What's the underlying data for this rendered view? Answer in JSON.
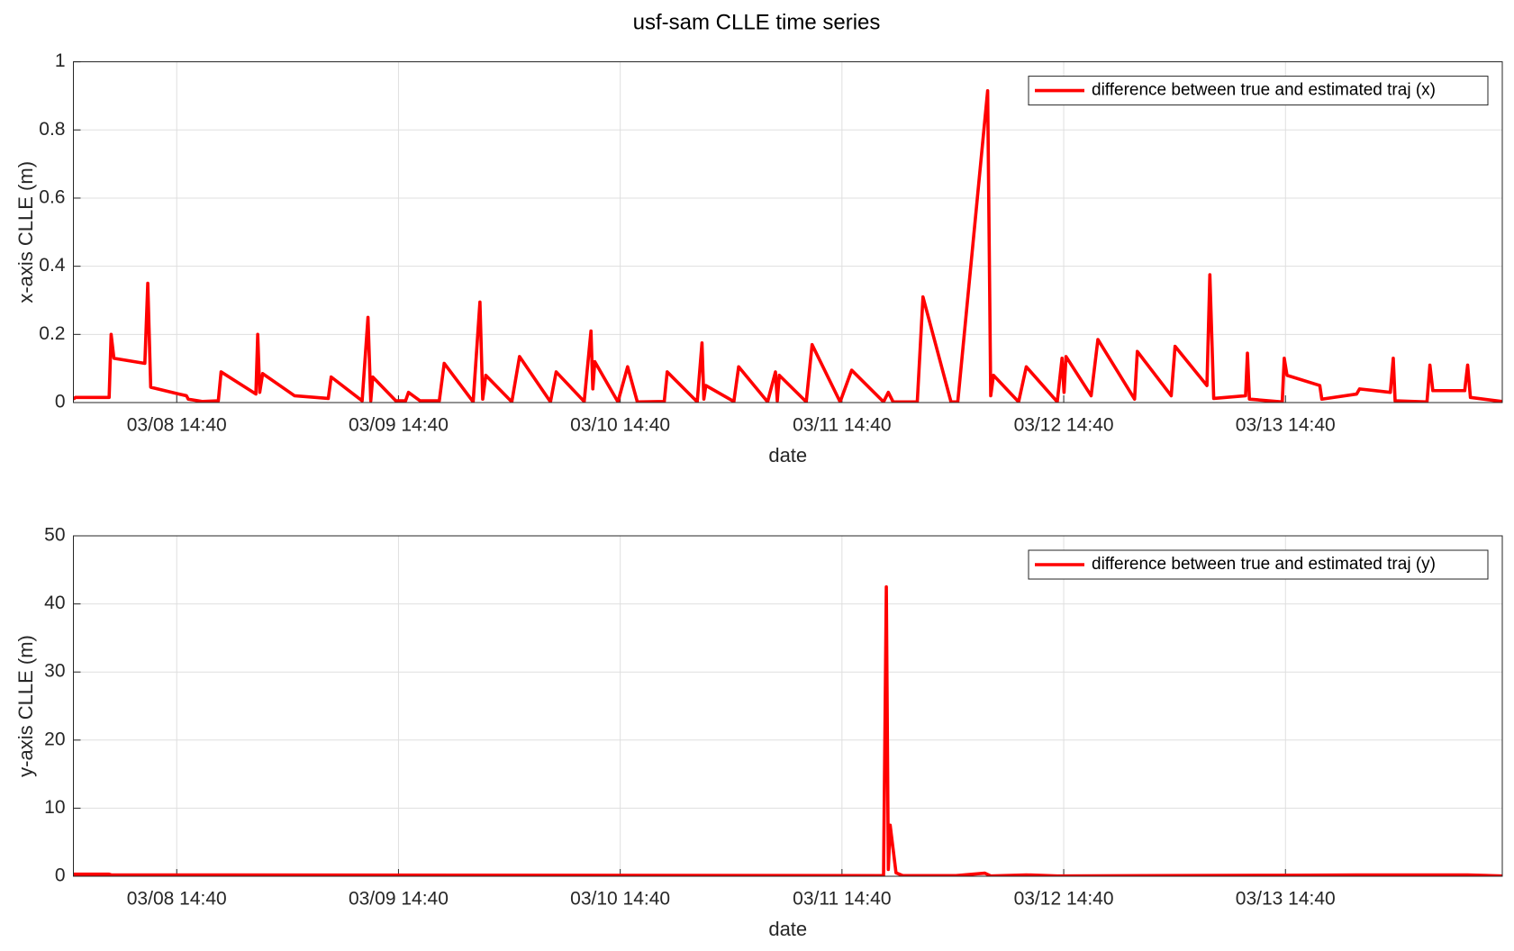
{
  "title": "usf-sam CLLE time series",
  "chart_data": [
    {
      "type": "line",
      "xlabel": "date",
      "ylabel": "x-axis CLLE (m)",
      "grid": true,
      "legend": "upper right",
      "xlim": [
        "03/08 03:29",
        "03/14 14:08"
      ],
      "xticks": [
        "03/08 14:40",
        "03/09 14:40",
        "03/10 14:40",
        "03/11 14:40",
        "03/12 14:40",
        "03/13 14:40"
      ],
      "ylim": [
        0,
        1
      ],
      "yticks": [
        0,
        0.2,
        0.4,
        0.6,
        0.8,
        1
      ],
      "x": [
        "03/08 03:29",
        "03/08 03:42",
        "03/08 07:21",
        "03/08 07:34",
        "03/08 07:52",
        "03/08 11:13",
        "03/08 11:32",
        "03/08 11:51",
        "03/08 14:53",
        "03/08 15:43",
        "03/08 15:55",
        "03/08 17:29",
        "03/08 19:10",
        "03/08 19:28",
        "03/08 23:14",
        "03/08 23:26",
        "03/08 23:39",
        "03/08 23:58",
        "03/09 03:25",
        "03/09 07:04",
        "03/09 07:23",
        "03/09 10:44",
        "03/09 11:22",
        "03/09 11:40",
        "03/09 11:53",
        "03/09 14:23",
        "03/09 15:26",
        "03/09 15:45",
        "03/09 17:00",
        "03/09 19:05",
        "03/09 19:37",
        "03/09 22:45",
        "03/09 23:29",
        "03/09 23:47",
        "03/10 00:07",
        "03/10 02:56",
        "03/10 03:46",
        "03/10 07:07",
        "03/10 07:44",
        "03/10 10:46",
        "03/10 11:30",
        "03/10 11:42",
        "03/10 11:55",
        "03/10 14:25",
        "03/10 15:28",
        "03/10 16:31",
        "03/10 19:26",
        "03/10 19:45",
        "03/10 23:00",
        "03/10 23:31",
        "03/10 23:43",
        "03/10 23:56",
        "03/11 02:58",
        "03/11 03:29",
        "03/11 06:37",
        "03/11 07:28",
        "03/11 07:40",
        "03/11 07:53",
        "03/11 10:48",
        "03/11 11:26",
        "03/11 14:28",
        "03/11 15:43",
        "03/11 19:10",
        "03/11 19:41",
        "03/11 20:12",
        "03/11 22:49",
        "03/11 23:26",
        "03/12 02:28",
        "03/12 03:12",
        "03/12 06:26",
        "03/12 06:46",
        "03/12 07:04",
        "03/12 09:47",
        "03/12 10:37",
        "03/12 13:58",
        "03/12 14:29",
        "03/12 14:42",
        "03/12 14:55",
        "03/12 17:38",
        "03/12 18:22",
        "03/12 22:20",
        "03/12 22:38",
        "03/13 02:18",
        "03/13 02:43",
        "03/13 06:10",
        "03/13 06:29",
        "03/13 06:54",
        "03/13 10:21",
        "03/13 10:33",
        "03/13 10:46",
        "03/13 14:19",
        "03/13 14:32",
        "03/13 14:50",
        "03/13 18:23",
        "03/13 18:36",
        "03/13 22:22",
        "03/13 22:41",
        "03/14 02:01",
        "03/14 02:20",
        "03/14 02:32",
        "03/14 05:59",
        "03/14 06:18",
        "03/14 06:37",
        "03/14 10:04",
        "03/14 10:23",
        "03/14 10:41",
        "03/14 14:08"
      ],
      "series": [
        {
          "name": "difference between true and estimated traj (x)",
          "color": "#ff0000",
          "values": [
            0.01,
            0.015,
            0.015,
            0.2,
            0.13,
            0.115,
            0.35,
            0.045,
            0.025,
            0.02,
            0.01,
            0.003,
            0.005,
            0.09,
            0.025,
            0.2,
            0.03,
            0.085,
            0.02,
            0.012,
            0.075,
            0.005,
            0.25,
            0.005,
            0.075,
            0.005,
            0.005,
            0.03,
            0.005,
            0.005,
            0.115,
            0.002,
            0.295,
            0.01,
            0.08,
            0.002,
            0.135,
            0.002,
            0.09,
            0.003,
            0.21,
            0.04,
            0.12,
            0.002,
            0.105,
            0.002,
            0.003,
            0.09,
            0.002,
            0.175,
            0.01,
            0.05,
            0.003,
            0.105,
            0.002,
            0.09,
            0.005,
            0.08,
            0.002,
            0.17,
            0.002,
            0.095,
            0.002,
            0.03,
            0.002,
            0.002,
            0.31,
            0.002,
            0.002,
            0.915,
            0.02,
            0.08,
            0.002,
            0.105,
            0.002,
            0.13,
            0.03,
            0.135,
            0.02,
            0.185,
            0.01,
            0.15,
            0.02,
            0.165,
            0.05,
            0.375,
            0.012,
            0.02,
            0.145,
            0.01,
            0.002,
            0.13,
            0.08,
            0.05,
            0.01,
            0.025,
            0.04,
            0.03,
            0.13,
            0.005,
            0.002,
            0.11,
            0.035,
            0.035,
            0.11,
            0.015,
            0.003
          ]
        }
      ]
    },
    {
      "type": "line",
      "xlabel": "date",
      "ylabel": "y-axis CLLE (m)",
      "grid": true,
      "legend": "upper right",
      "xlim": [
        "03/08 03:29",
        "03/14 14:08"
      ],
      "xticks": [
        "03/08 14:40",
        "03/09 14:40",
        "03/10 14:40",
        "03/11 14:40",
        "03/12 14:40",
        "03/13 14:40"
      ],
      "ylim": [
        0,
        50
      ],
      "yticks": [
        0,
        10,
        20,
        30,
        40,
        50
      ],
      "x": [
        "03/08 03:29",
        "03/08 07:21",
        "03/08 07:34",
        "03/11 19:10",
        "03/11 19:28",
        "03/11 19:41",
        "03/11 19:53",
        "03/11 20:31",
        "03/11 21:15",
        "03/12 03:00",
        "03/12 06:08",
        "03/12 06:46",
        "03/12 10:37",
        "03/12 13:58",
        "03/13 14:32",
        "03/13 22:22",
        "03/14 10:23",
        "03/14 14:08"
      ],
      "series": [
        {
          "name": "difference between true and estimated traj (y)",
          "color": "#ff0000",
          "values": [
            0.3,
            0.3,
            0.2,
            0.1,
            42.5,
            1,
            7.5,
            0.5,
            0.1,
            0.1,
            0.45,
            0.05,
            0.2,
            0.05,
            0.15,
            0.2,
            0.2,
            0.05
          ]
        }
      ]
    }
  ]
}
